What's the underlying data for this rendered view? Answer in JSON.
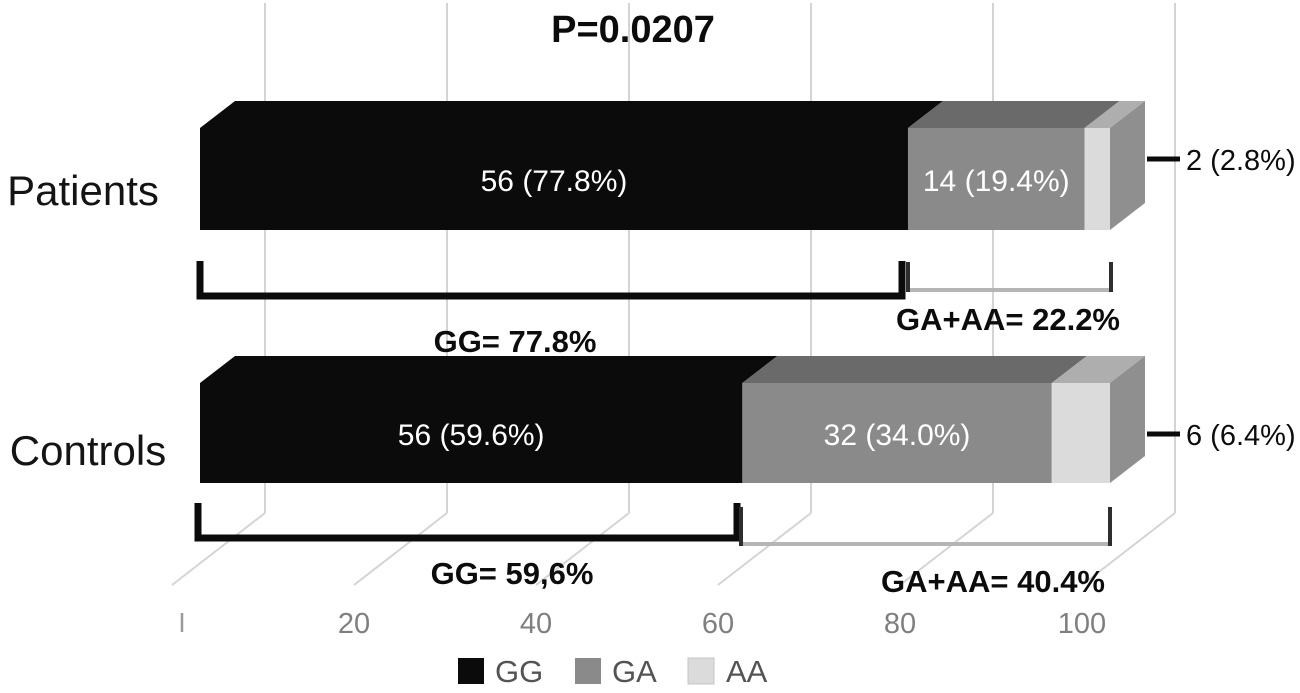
{
  "chart_data": {
    "type": "bar",
    "subtype": "horizontal-stacked-3d",
    "title": "P=0.0207",
    "categories": [
      "Patients",
      "Controls"
    ],
    "series": [
      {
        "name": "GG",
        "color": "#0b0b0b",
        "color_top": "#0b0b0b",
        "values": [
          77.8,
          59.6
        ],
        "counts": [
          56,
          56
        ],
        "labels": [
          "56 (77.8%)",
          "56 (59.6%)"
        ],
        "label_in_bar": true
      },
      {
        "name": "GA",
        "color": "#8a8a8a",
        "color_top": "#6a6a6a",
        "values": [
          19.4,
          34.0
        ],
        "counts": [
          14,
          32
        ],
        "labels": [
          "14 (19.4%)",
          "32 (34.0%)"
        ],
        "label_in_bar": true
      },
      {
        "name": "AA",
        "color": "#dbdbdb",
        "color_top": "#aeaeae",
        "values": [
          2.8,
          6.4
        ],
        "counts": [
          2,
          6
        ],
        "labels": [
          "2 (2.8%)",
          "6 (6.4%)"
        ],
        "label_in_bar": false
      }
    ],
    "end_cap_color": "#8f8f8f",
    "xlim": [
      0,
      100
    ],
    "x_ticks": [
      20,
      40,
      60,
      80,
      100
    ],
    "grid": true,
    "gridline_color": "#d4d4d4",
    "legend": [
      "GG",
      "GA",
      "AA"
    ],
    "legend_position": "bottom",
    "annotations": {
      "patients_gg": "GG= 77.8%",
      "patients_ga_aa": "GA+AA= 22.2%",
      "controls_gg": "GG= 59,6%",
      "controls_ga_aa": "GA+AA= 40.4%",
      "patients_aa_callout": "2 (2.8%)",
      "controls_aa_callout": "6 (6.4%)"
    }
  }
}
